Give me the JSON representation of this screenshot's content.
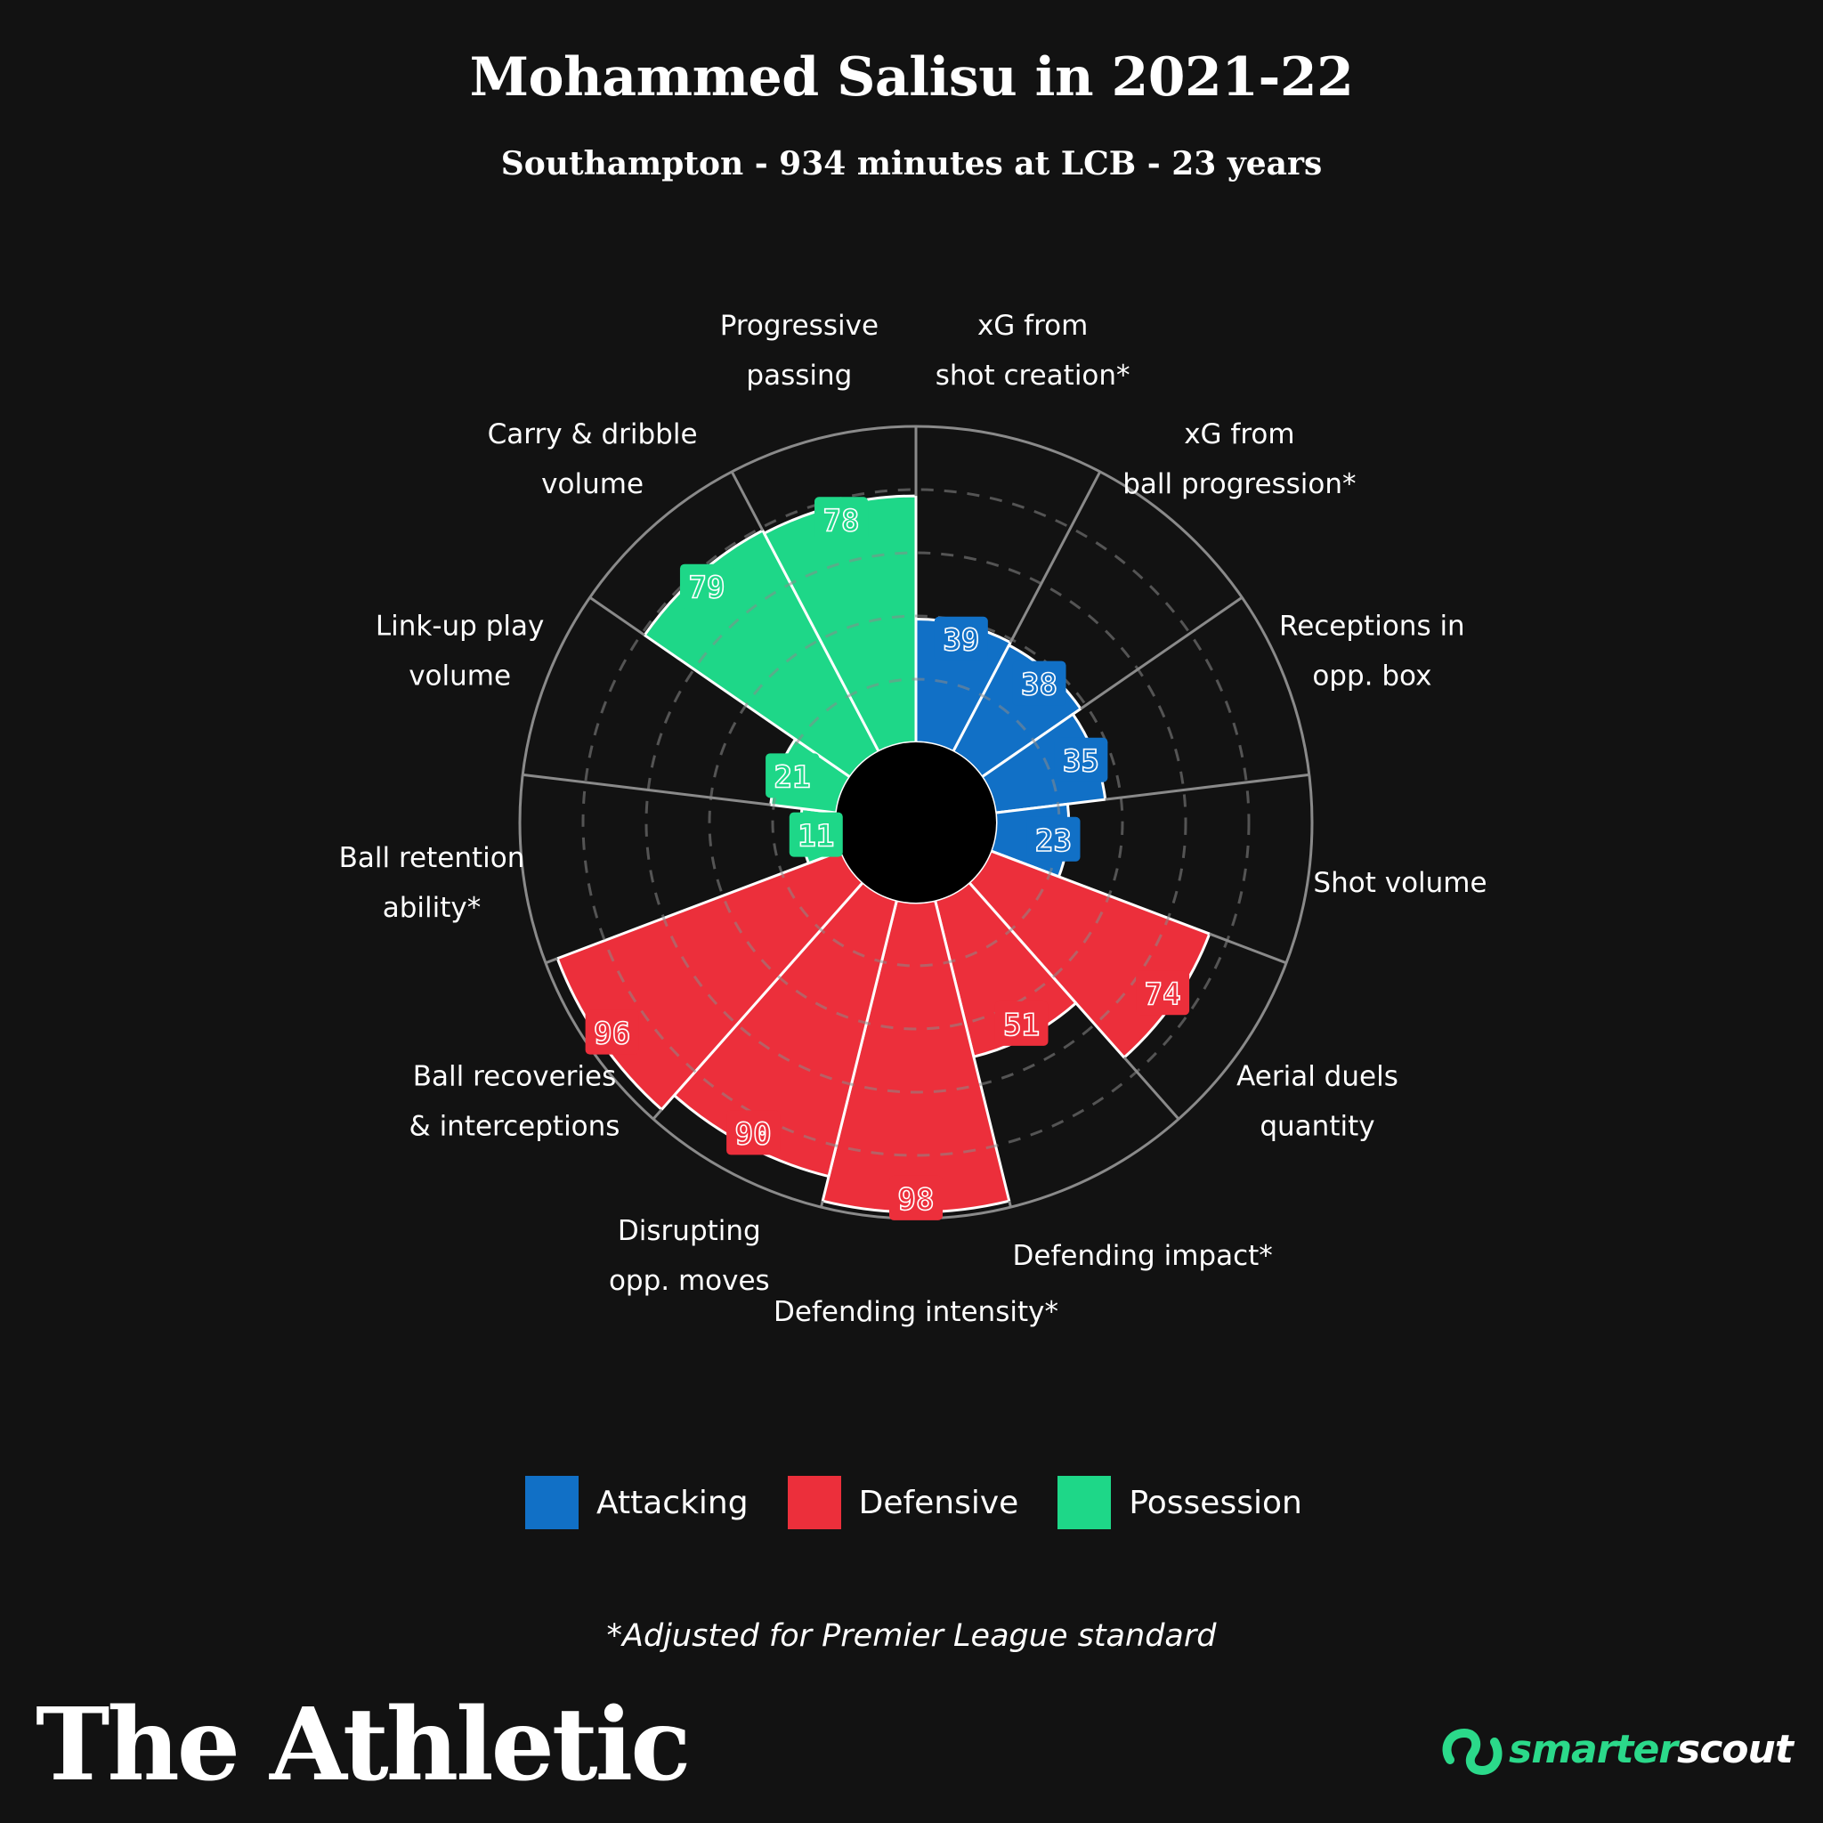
{
  "title": "Mohammed Salisu in 2021-22",
  "subtitle": "Southampton - 934 minutes at LCB - 23 years",
  "chart_data": {
    "type": "polar-bar",
    "title": "Mohammed Salisu in 2021-22",
    "subtitle": "Southampton - 934 minutes at LCB - 23 years",
    "range": [
      0,
      100
    ],
    "rings": [
      20,
      40,
      60,
      80
    ],
    "categories": [
      {
        "label": [
          "xG from",
          "shot creation*"
        ],
        "value": 39,
        "group": "Attacking"
      },
      {
        "label": [
          "xG from",
          "ball progression*"
        ],
        "value": 38,
        "group": "Attacking"
      },
      {
        "label": [
          "Receptions in",
          "opp. box"
        ],
        "value": 35,
        "group": "Attacking"
      },
      {
        "label": [
          "Shot volume"
        ],
        "value": 23,
        "group": "Attacking"
      },
      {
        "label": [
          "Aerial duels",
          "quantity"
        ],
        "value": 74,
        "group": "Defensive"
      },
      {
        "label": [
          "Defending impact*"
        ],
        "value": 51,
        "group": "Defensive"
      },
      {
        "label": [
          "Defending intensity*"
        ],
        "value": 98,
        "group": "Defensive"
      },
      {
        "label": [
          "Disrupting",
          "opp. moves"
        ],
        "value": 90,
        "group": "Defensive"
      },
      {
        "label": [
          "Ball recoveries",
          "& interceptions"
        ],
        "value": 96,
        "group": "Defensive"
      },
      {
        "label": [
          "Ball retention",
          "ability*"
        ],
        "value": 11,
        "group": "Possession"
      },
      {
        "label": [
          "Link-up play",
          "volume"
        ],
        "value": 21,
        "group": "Possession"
      },
      {
        "label": [
          "Carry & dribble",
          "volume"
        ],
        "value": 79,
        "group": "Possession"
      },
      {
        "label": [
          "Progressive",
          "passing"
        ],
        "value": 78,
        "group": "Possession"
      }
    ],
    "groups": [
      {
        "name": "Attacking",
        "color": "#1170c6"
      },
      {
        "name": "Defensive",
        "color": "#ec2f3b"
      },
      {
        "name": "Possession",
        "color": "#1ed788"
      }
    ],
    "legend_position": "bottom"
  },
  "legend": [
    {
      "label": "Attacking",
      "color": "#1170c6"
    },
    {
      "label": "Defensive",
      "color": "#ec2f3b"
    },
    {
      "label": "Possession",
      "color": "#1ed788"
    }
  ],
  "footnote": "*Adjusted for Premier League standard",
  "brand": "The Athletic",
  "partner": {
    "prefix": "smarter",
    "suffix": "scout"
  },
  "colors": {
    "background": "#121212",
    "grid": "#8a8a8a",
    "logo_accent": "#2bd98a"
  }
}
